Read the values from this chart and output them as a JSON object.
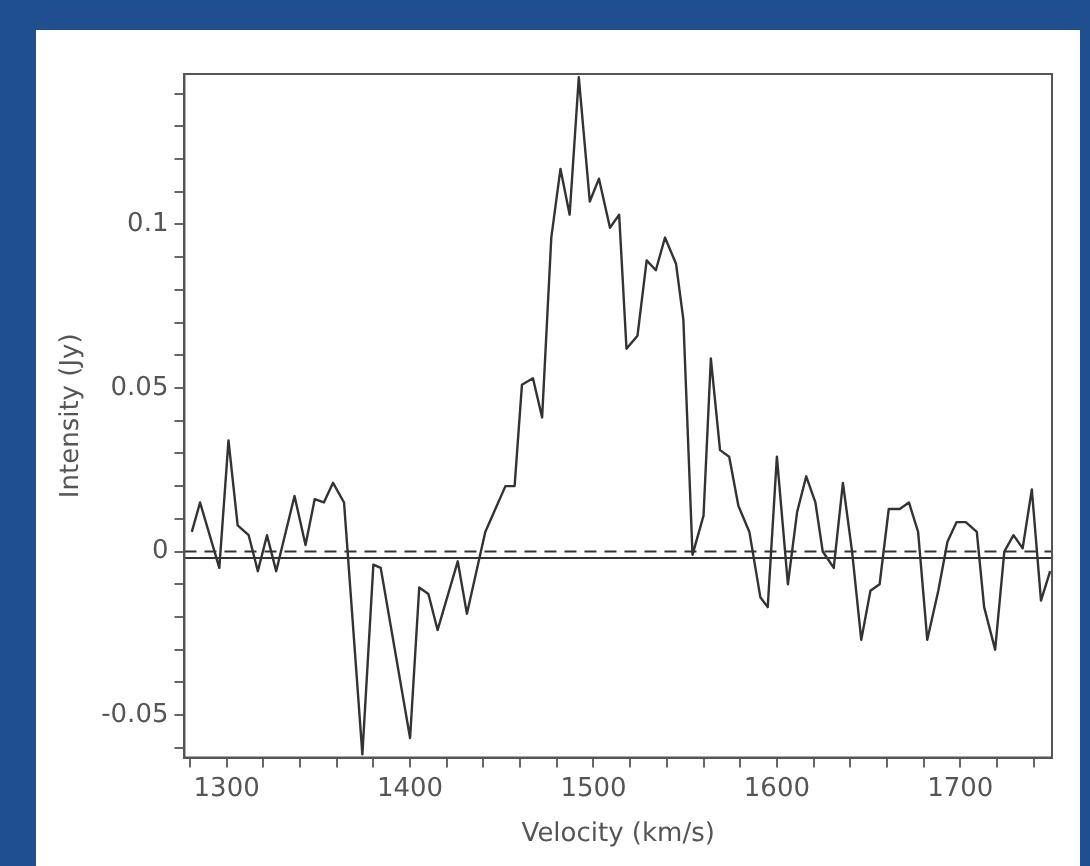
{
  "chart_data": {
    "type": "line",
    "xlabel": "Velocity (km/s)",
    "ylabel": "Intensity (Jy)",
    "xlim": [
      1277,
      1750
    ],
    "ylim": [
      -0.063,
      0.146
    ],
    "xticks": [
      {
        "value": 1280,
        "label": null
      },
      1300,
      {
        "value": 1320,
        "label": null
      },
      {
        "value": 1340,
        "label": null
      },
      {
        "value": 1360,
        "label": null
      },
      {
        "value": 1380,
        "label": null
      },
      1400,
      {
        "value": 1420,
        "label": null
      },
      {
        "value": 1440,
        "label": null
      },
      {
        "value": 1460,
        "label": null
      },
      {
        "value": 1480,
        "label": null
      },
      1500,
      {
        "value": 1520,
        "label": null
      },
      {
        "value": 1540,
        "label": null
      },
      {
        "value": 1560,
        "label": null
      },
      {
        "value": 1580,
        "label": null
      },
      1600,
      {
        "value": 1620,
        "label": null
      },
      {
        "value": 1640,
        "label": null
      },
      {
        "value": 1660,
        "label": null
      },
      {
        "value": 1680,
        "label": null
      },
      1700,
      {
        "value": 1720,
        "label": null
      },
      {
        "value": 1740,
        "label": null
      }
    ],
    "yticks": [
      {
        "value": -0.06,
        "label": null
      },
      -0.05,
      {
        "value": -0.04,
        "label": null
      },
      {
        "value": -0.03,
        "label": null
      },
      {
        "value": -0.02,
        "label": null
      },
      {
        "value": -0.01,
        "label": null
      },
      0,
      {
        "value": 0.01,
        "label": null
      },
      {
        "value": 0.02,
        "label": null
      },
      {
        "value": 0.03,
        "label": null
      },
      {
        "value": 0.04,
        "label": null
      },
      0.05,
      {
        "value": 0.06,
        "label": null
      },
      {
        "value": 0.07,
        "label": null
      },
      {
        "value": 0.08,
        "label": null
      },
      {
        "value": 0.09,
        "label": null
      },
      0.1,
      {
        "value": 0.11,
        "label": null
      },
      {
        "value": 0.12,
        "label": null
      },
      {
        "value": 0.13,
        "label": null
      },
      {
        "value": 0.14,
        "label": null
      }
    ],
    "grid": false,
    "legend": false,
    "marker": "none",
    "line_style": "solid",
    "ref_lines": [
      {
        "axis": "y",
        "value": 0,
        "color": "#333333",
        "line_style": "dashed"
      },
      {
        "axis": "y",
        "value": -0.002,
        "color": "#333333",
        "line_style": "solid"
      }
    ],
    "series": [
      {
        "color": "#333333",
        "x": [
          1281,
          1285.5,
          1296,
          1301,
          1306,
          1312,
          1317,
          1322,
          1327,
          1337,
          1343,
          1348,
          1353,
          1358,
          1364,
          1374,
          1380,
          1384,
          1400,
          1405,
          1410,
          1415,
          1426,
          1431,
          1441,
          1452,
          1457,
          1461,
          1467,
          1472,
          1477,
          1482,
          1487,
          1492,
          1498,
          1503,
          1509,
          1514,
          1518,
          1524,
          1529,
          1534,
          1539,
          1545,
          1549,
          1554,
          1560,
          1564,
          1569,
          1574,
          1579,
          1585,
          1591,
          1595,
          1600,
          1606,
          1611,
          1616,
          1621,
          1625,
          1631,
          1636,
          1641,
          1646,
          1651,
          1656,
          1661,
          1667,
          1672,
          1677,
          1682,
          1688,
          1693,
          1698,
          1703,
          1709,
          1713,
          1719,
          1724,
          1729,
          1734,
          1739,
          1744,
          1749
        ],
        "values": [
          0.006,
          0.015,
          -0.005,
          0.034,
          0.008,
          0.005,
          -0.006,
          0.005,
          -0.006,
          0.017,
          0.002,
          0.016,
          0.015,
          0.021,
          0.015,
          -0.062,
          -0.004,
          -0.005,
          -0.057,
          -0.011,
          -0.013,
          -0.024,
          -0.003,
          -0.019,
          0.006,
          0.02,
          0.02,
          0.051,
          0.053,
          0.041,
          0.096,
          0.117,
          0.103,
          0.145,
          0.107,
          0.114,
          0.099,
          0.103,
          0.062,
          0.066,
          0.089,
          0.086,
          0.096,
          0.088,
          0.071,
          -0.001,
          0.011,
          0.059,
          0.031,
          0.029,
          0.014,
          0.006,
          -0.014,
          -0.017,
          0.029,
          -0.01,
          0.012,
          0.023,
          0.015,
          0,
          -0.005,
          0.021,
          0,
          -0.027,
          -0.012,
          -0.01,
          0.013,
          0.013,
          0.015,
          0.006,
          -0.027,
          -0.012,
          0.003,
          0.009,
          0.009,
          0.006,
          -0.017,
          -0.03,
          0,
          0.005,
          0.001,
          0.019,
          -0.015,
          -0.006
        ]
      }
    ]
  }
}
